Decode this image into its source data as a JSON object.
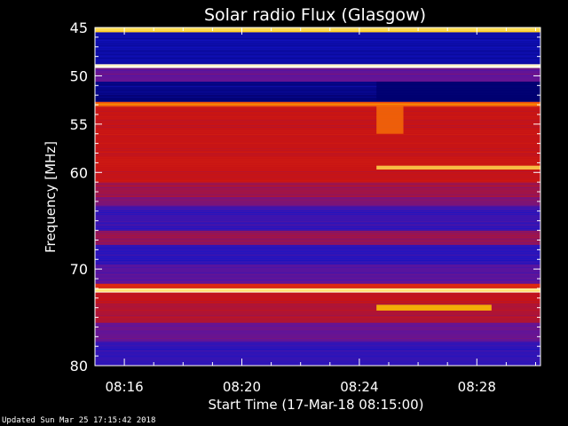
{
  "chart_data": {
    "type": "heatmap",
    "title": "Solar radio Flux (Glasgow)",
    "xlabel": "Start Time (17-Mar-18 08:15:00)",
    "ylabel": "Frequency [MHz]",
    "ylim": [
      45,
      80
    ],
    "y_inverted": true,
    "y_ticks": [
      45,
      50,
      55,
      60,
      70,
      80
    ],
    "x_ticks": [
      "08:16",
      "08:20",
      "08:24",
      "08:28"
    ],
    "x_range": [
      "08:15:00",
      "08:30:10"
    ],
    "colormap": "blue-red-yellow-white",
    "bands": [
      {
        "from": 45.0,
        "to": 45.5,
        "level": 0.9
      },
      {
        "from": 45.5,
        "to": 48.8,
        "level": 0.1
      },
      {
        "from": 48.8,
        "to": 49.2,
        "level": 1.0
      },
      {
        "from": 49.2,
        "to": 50.6,
        "level": 0.3
      },
      {
        "from": 50.6,
        "to": 52.0,
        "level": 0.05
      },
      {
        "from": 52.0,
        "to": 52.7,
        "level": 0.02
      },
      {
        "from": 52.7,
        "to": 53.2,
        "level": 0.75
      },
      {
        "from": 53.2,
        "to": 58.0,
        "level": 0.5
      },
      {
        "from": 58.0,
        "to": 61.0,
        "level": 0.5
      },
      {
        "from": 61.0,
        "to": 62.5,
        "level": 0.42
      },
      {
        "from": 62.5,
        "to": 63.5,
        "level": 0.35
      },
      {
        "from": 63.5,
        "to": 66.0,
        "level": 0.22
      },
      {
        "from": 66.0,
        "to": 67.5,
        "level": 0.4
      },
      {
        "from": 67.5,
        "to": 69.5,
        "level": 0.2
      },
      {
        "from": 69.5,
        "to": 71.5,
        "level": 0.28
      },
      {
        "from": 71.5,
        "to": 72.0,
        "level": 0.6
      },
      {
        "from": 72.0,
        "to": 72.4,
        "level": 0.95
      },
      {
        "from": 72.4,
        "to": 73.5,
        "level": 0.5
      },
      {
        "from": 73.5,
        "to": 75.5,
        "level": 0.45
      },
      {
        "from": 75.5,
        "to": 77.5,
        "level": 0.3
      },
      {
        "from": 77.5,
        "to": 80.0,
        "level": 0.2
      }
    ],
    "events": [
      {
        "time": "08:24:35",
        "freq_from": 53.0,
        "freq_to": 56.0,
        "level": 0.75,
        "to_time": "08:25:30"
      },
      {
        "time": "08:24:35",
        "freq_from": 59.3,
        "freq_to": 59.7,
        "level": 0.9,
        "to_time": "08:30:10"
      },
      {
        "time": "08:24:35",
        "freq_from": 73.7,
        "freq_to": 74.3,
        "level": 0.85,
        "to_time": "08:28:30"
      },
      {
        "time": "08:24:35",
        "freq_from": 50.6,
        "freq_to": 52.6,
        "level": 0.0,
        "to_time": "08:30:10"
      }
    ]
  },
  "footer": {
    "updated": "Updated Sun Mar 25 17:15:42 2018"
  }
}
